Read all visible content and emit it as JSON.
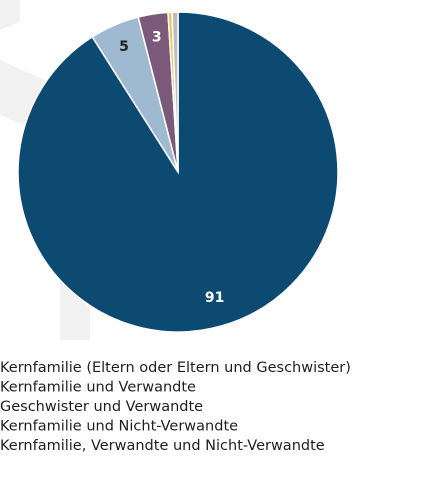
{
  "chart_data": {
    "type": "pie",
    "categories": [
      "Kernfamilie (Eltern oder Eltern und Geschwister)",
      "Kernfamilie und Verwandte",
      "Geschwister und Verwandte",
      "Kernfamilie und Nicht-Verwandte",
      "Kernfamilie, Verwandte und Nicht-Verwandte"
    ],
    "values": [
      91,
      5,
      3,
      0.4,
      0.6
    ],
    "colors": [
      "#0d4a72",
      "#9fbad0",
      "#7a5a78",
      "#f2c14e",
      "#b9bdc1"
    ]
  }
}
